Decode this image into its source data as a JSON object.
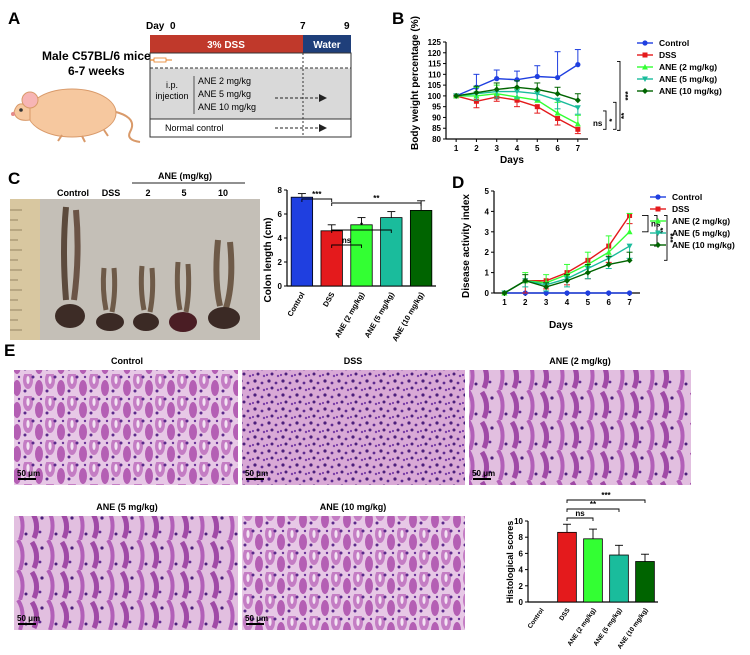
{
  "panel_labels": {
    "a": "A",
    "b": "B",
    "c": "C",
    "d": "D",
    "e": "E"
  },
  "panel_a": {
    "mouse_line1": "Male C57BL/6 mice",
    "mouse_line2": "6-7 weeks",
    "day_label": "Day",
    "day0": "0",
    "day7": "7",
    "day9": "9",
    "dss_label": "3% DSS",
    "water_label": "Water",
    "ip_line1": "i.p.",
    "ip_line2": "injection",
    "dose1": "ANE 2 mg/kg",
    "dose2": "ANE 5 mg/kg",
    "dose3": "ANE 10 mg/kg",
    "normal_control": "Normal control",
    "colors": {
      "dss_bar": "#c0392b",
      "water_bar": "#1f3f7a",
      "gray_box": "#d9d9d9",
      "mouse": "#f6c89f"
    }
  },
  "legend": {
    "colors": {
      "control": "#1f3fe0",
      "dss": "#e41a1c",
      "ane2": "#33ff33",
      "ane5": "#1abc9c",
      "ane10": "#006400"
    },
    "items": [
      "Control",
      "DSS",
      "ANE (2 mg/kg)",
      "ANE (5 mg/kg)",
      "ANE (10 mg/kg)"
    ]
  },
  "panel_b_sig": [
    "ns",
    "*",
    "**",
    "***"
  ],
  "panel_c": {
    "photo_header": "ANE (mg/kg)",
    "photo_labels": [
      "Control",
      "DSS",
      "2",
      "5",
      "10"
    ],
    "sig": [
      "***",
      "**",
      "*",
      "ns"
    ]
  },
  "panel_d_sig": [
    "ns",
    "**",
    "***"
  ],
  "panel_e": {
    "titles": [
      "Control",
      "DSS",
      "ANE (2 mg/kg)",
      "ANE (5 mg/kg)",
      "ANE (10 mg/kg)"
    ],
    "scale": "50 μm",
    "sig": [
      "***",
      "**",
      "ns"
    ]
  },
  "chart_data": [
    {
      "type": "line",
      "title": "",
      "xlabel": "Days",
      "ylabel": "Body weight percentage (%)",
      "x": [
        1,
        2,
        3,
        4,
        5,
        6,
        7
      ],
      "xlim": [
        0.5,
        7.5
      ],
      "ylim": [
        80,
        125
      ],
      "yticks": [
        80,
        85,
        90,
        95,
        100,
        105,
        110,
        115,
        120,
        125
      ],
      "series": [
        {
          "name": "Control",
          "values": [
            100,
            104,
            108,
            107.5,
            109,
            108.5,
            114.5
          ]
        },
        {
          "name": "DSS",
          "values": [
            100,
            97.5,
            99.5,
            98,
            95,
            89.5,
            84.5
          ]
        },
        {
          "name": "ANE (2 mg/kg)",
          "values": [
            100,
            100,
            101,
            99.5,
            98,
            92,
            87
          ]
        },
        {
          "name": "ANE (5 mg/kg)",
          "values": [
            100,
            101,
            102,
            102,
            101,
            98,
            94.5
          ]
        },
        {
          "name": "ANE (10 mg/kg)",
          "values": [
            100,
            101.5,
            103,
            104,
            103,
            101,
            98
          ]
        }
      ]
    },
    {
      "type": "bar",
      "title": "",
      "xlabel": "",
      "ylabel": "Colon length (cm)",
      "categories": [
        "Control",
        "DSS",
        "ANE (2 mg/kg)",
        "ANE (5 mg/kg)",
        "ANE (10 mg/kg)"
      ],
      "values": [
        7.4,
        4.6,
        5.1,
        5.7,
        6.3
      ],
      "errors": [
        0.3,
        0.5,
        0.6,
        0.5,
        0.8
      ],
      "ylim": [
        0,
        8
      ],
      "yticks": [
        0,
        2,
        4,
        6,
        8
      ]
    },
    {
      "type": "line",
      "title": "",
      "xlabel": "Days",
      "ylabel": "Disease activity index",
      "x": [
        1,
        2,
        3,
        4,
        5,
        6,
        7
      ],
      "xlim": [
        0.5,
        7.5
      ],
      "ylim": [
        0,
        5
      ],
      "yticks": [
        0,
        1,
        2,
        3,
        4,
        5
      ],
      "series": [
        {
          "name": "Control",
          "values": [
            0,
            0,
            0,
            0,
            0,
            0,
            0
          ]
        },
        {
          "name": "DSS",
          "values": [
            0,
            0.6,
            0.6,
            1.0,
            1.6,
            2.3,
            3.8
          ]
        },
        {
          "name": "ANE (2 mg/kg)",
          "values": [
            0,
            0.6,
            0.5,
            0.9,
            1.4,
            2.0,
            3.0
          ]
        },
        {
          "name": "ANE (5 mg/kg)",
          "values": [
            0,
            0.6,
            0.4,
            0.7,
            1.2,
            1.7,
            2.3
          ]
        },
        {
          "name": "ANE (10 mg/kg)",
          "values": [
            0,
            0.6,
            0.3,
            0.6,
            1.0,
            1.4,
            1.6
          ]
        }
      ]
    },
    {
      "type": "bar",
      "title": "",
      "xlabel": "",
      "ylabel": "Histological scores",
      "categories": [
        "Control",
        "DSS",
        "ANE (2 mg/kg)",
        "ANE (5 mg/kg)",
        "ANE (10 mg/kg)"
      ],
      "values": [
        0,
        8.6,
        7.8,
        5.8,
        5.0
      ],
      "errors": [
        0,
        1.0,
        1.2,
        1.2,
        0.9
      ],
      "ylim": [
        0,
        10
      ],
      "yticks": [
        0,
        2,
        4,
        6,
        8,
        10
      ]
    }
  ]
}
